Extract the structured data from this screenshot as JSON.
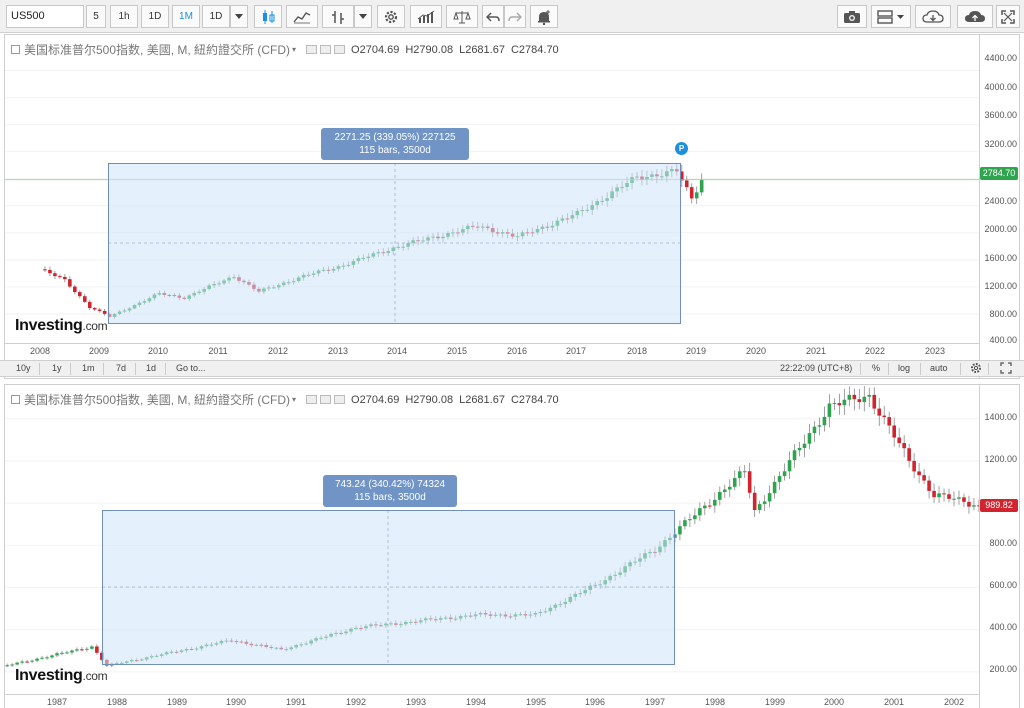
{
  "toolbar": {
    "symbol": "US500",
    "intervals": [
      "5",
      "1h",
      "1D",
      "1M",
      "1D"
    ],
    "active_interval": "1M",
    "icons": [
      "candlestick-icon",
      "line-chart-icon",
      "bar-style-icon",
      "settings-gear-icon",
      "indicators-icon",
      "scale-icon",
      "undo-icon",
      "redo-icon",
      "alert-icon",
      "camera-icon",
      "layout-icon",
      "cloud-download-icon",
      "cloud-upload-icon",
      "fullscreen-icon"
    ]
  },
  "top_chart": {
    "title": "美国标准普尔500指数, 美國, M, 紐約證交所 (CFD)",
    "ohlc": {
      "open": "O2704.69",
      "high": "H2790.08",
      "low": "L2681.67",
      "close": "C2784.70"
    },
    "price_tag": "2784.70",
    "price_ticks": [
      "4400.00",
      "4000.00",
      "3600.00",
      "3200.00",
      "2800.00",
      "2400.00",
      "2000.00",
      "1600.00",
      "1200.00",
      "800.00",
      "400.00"
    ],
    "time_ticks": [
      "2008",
      "2009",
      "2010",
      "2011",
      "2012",
      "2013",
      "2014",
      "2015",
      "2016",
      "2017",
      "2018",
      "2019",
      "2020",
      "2021",
      "2022",
      "2023"
    ],
    "measure_line1": "2271.25 (339.05%) 227125",
    "measure_line2": "115 bars, 3500d",
    "marker": "P"
  },
  "status_bar": {
    "ranges": [
      "10y",
      "1y",
      "1m",
      "7d",
      "1d"
    ],
    "goto": "Go to...",
    "time": "22:22:09 (UTC+8)",
    "percent": "%",
    "log": "log",
    "auto": "auto"
  },
  "bottom_chart": {
    "title": "美国标准普尔500指数, 美國, M, 紐約證交所 (CFD)",
    "ohlc": {
      "open": "O2704.69",
      "high": "H2790.08",
      "low": "L2681.67",
      "close": "C2784.70"
    },
    "price_tag": "989.82",
    "price_ticks": [
      "1400.00",
      "1200.00",
      "1000.00",
      "800.00",
      "600.00",
      "400.00",
      "200.00"
    ],
    "time_ticks": [
      "1987",
      "1988",
      "1989",
      "1990",
      "1991",
      "1992",
      "1993",
      "1994",
      "1995",
      "1996",
      "1997",
      "1998",
      "1999",
      "2000",
      "2001",
      "2002"
    ],
    "measure_line1": "743.24 (340.42%) 74324",
    "measure_line2": "115 bars, 3500d"
  },
  "logo": {
    "brand": "Investing",
    "suffix": ".com"
  },
  "colors": {
    "up": "#2ea44f",
    "down": "#d0242f",
    "accent": "#1d8fe0",
    "measure_box": "#7094c6",
    "price_line_green": "#2ea44f"
  },
  "chart_data": [
    {
      "type": "candlestick",
      "title": "美国标准普尔500指数, 美國, M, 紐約證交所 (CFD)",
      "ylim": [
        400,
        4600
      ],
      "x_range": [
        "2008",
        "2023"
      ],
      "close_path": [
        {
          "date": "2008-01",
          "close": 1460
        },
        {
          "date": "2008-06",
          "close": 1300
        },
        {
          "date": "2008-11",
          "close": 900
        },
        {
          "date": "2009-03",
          "close": 760
        },
        {
          "date": "2010-01",
          "close": 1100
        },
        {
          "date": "2010-06",
          "close": 1040
        },
        {
          "date": "2011-04",
          "close": 1360
        },
        {
          "date": "2011-09",
          "close": 1130
        },
        {
          "date": "2012-06",
          "close": 1360
        },
        {
          "date": "2013-01",
          "close": 1500
        },
        {
          "date": "2014-01",
          "close": 1800
        },
        {
          "date": "2015-05",
          "close": 2100
        },
        {
          "date": "2016-01",
          "close": 1940
        },
        {
          "date": "2017-01",
          "close": 2280
        },
        {
          "date": "2018-01",
          "close": 2820
        },
        {
          "date": "2018-09",
          "close": 2910
        },
        {
          "date": "2018-12",
          "close": 2500
        },
        {
          "date": "2019-02",
          "close": 2784.7
        }
      ],
      "measurement": {
        "change": "2271.25 (339.05%) 227125",
        "bars": "115 bars, 3500d"
      }
    },
    {
      "type": "candlestick",
      "title": "美国标准普尔500指数, 美國, M, 紐約證交所 (CFD)",
      "ylim": [
        100,
        1560
      ],
      "x_range": [
        "1987",
        "2002"
      ],
      "close_path": [
        {
          "date": "1986-01",
          "close": 220
        },
        {
          "date": "1987-08",
          "close": 320
        },
        {
          "date": "1987-11",
          "close": 230
        },
        {
          "date": "1989-12",
          "close": 350
        },
        {
          "date": "1990-10",
          "close": 305
        },
        {
          "date": "1992-01",
          "close": 410
        },
        {
          "date": "1994-01",
          "close": 470
        },
        {
          "date": "1995-01",
          "close": 470
        },
        {
          "date": "1996-01",
          "close": 610
        },
        {
          "date": "1997-01",
          "close": 780
        },
        {
          "date": "1998-07",
          "close": 1150
        },
        {
          "date": "1998-09",
          "close": 960
        },
        {
          "date": "1999-12",
          "close": 1460
        },
        {
          "date": "2000-08",
          "close": 1510
        },
        {
          "date": "2001-04",
          "close": 1200
        },
        {
          "date": "2001-09",
          "close": 1040
        },
        {
          "date": "2002-06",
          "close": 989.82
        }
      ],
      "measurement": {
        "change": "743.24 (340.42%) 74324",
        "bars": "115 bars, 3500d"
      }
    }
  ]
}
